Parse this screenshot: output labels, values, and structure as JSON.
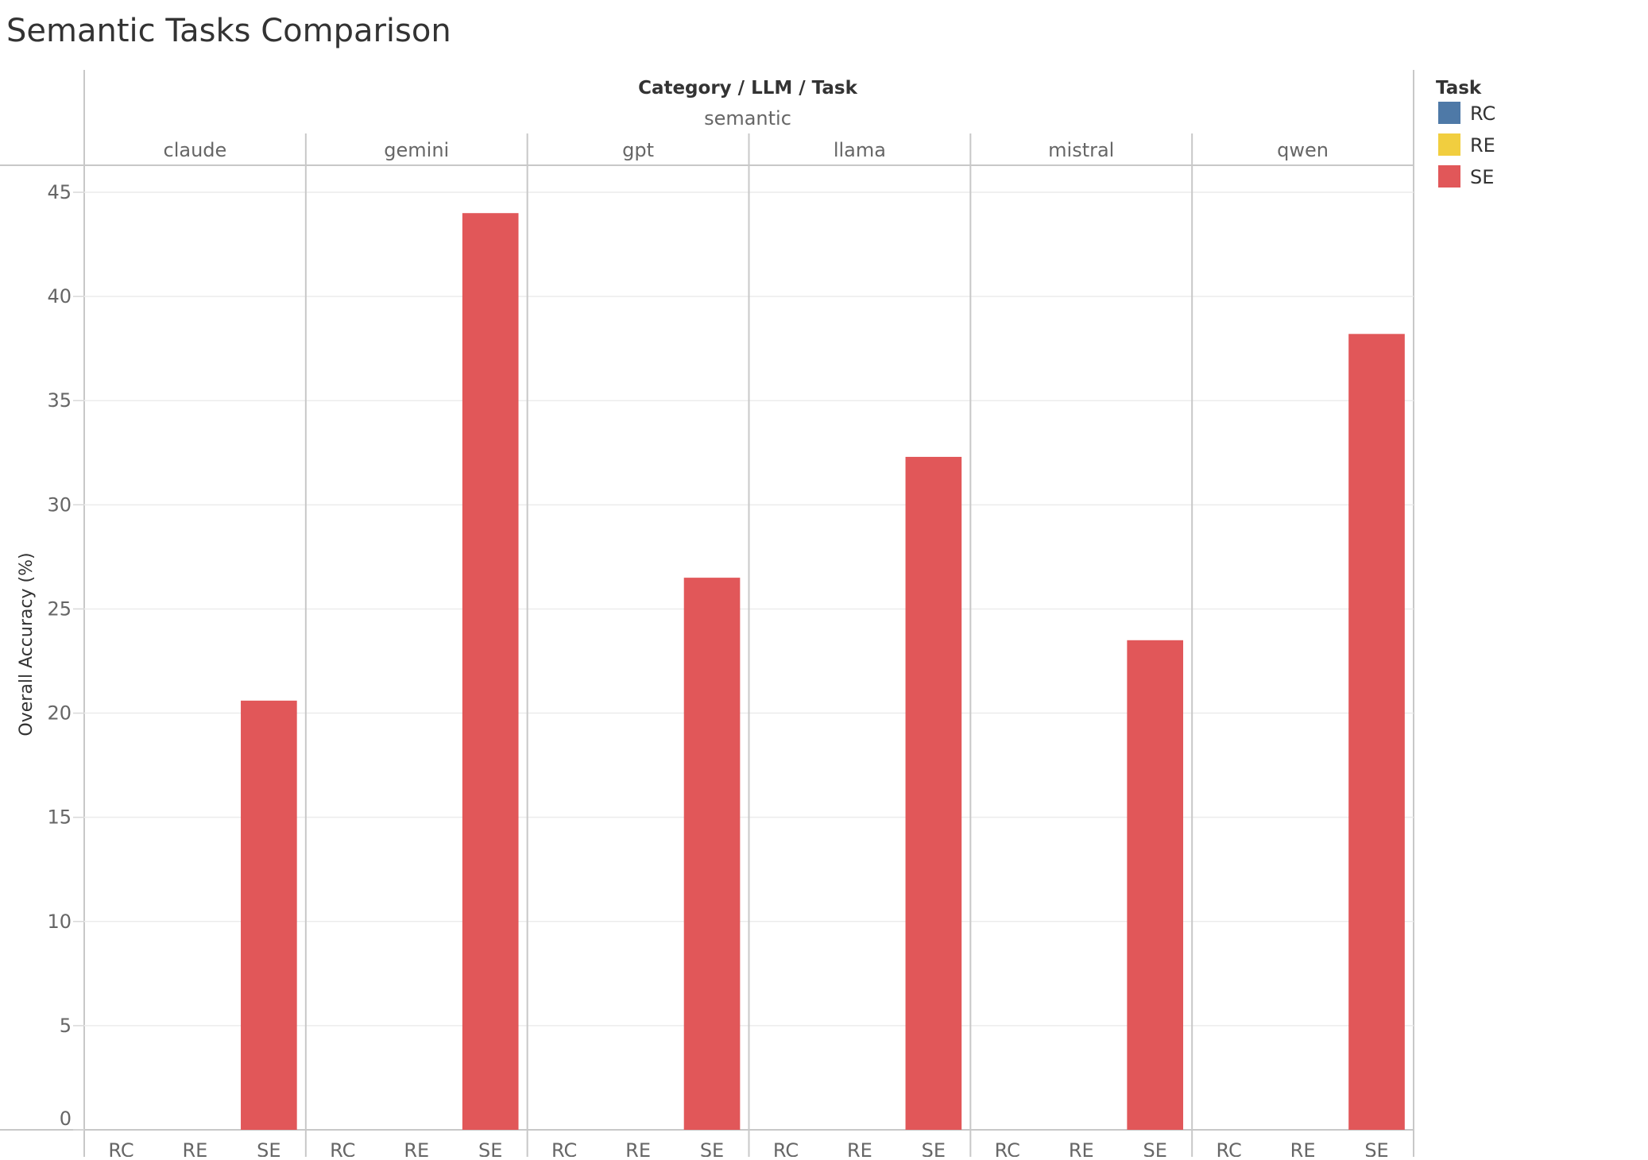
{
  "chart_data": {
    "type": "bar",
    "title": "Semantic Tasks Comparison",
    "header_title": "Category / LLM / Task",
    "category": "semantic",
    "ylabel": "Overall Accuracy (%)",
    "ylim": [
      0,
      46
    ],
    "yticks": [
      0,
      5,
      10,
      15,
      20,
      25,
      30,
      35,
      40,
      45
    ],
    "grid": true,
    "legend_title": "Task",
    "legend_position": "top-right",
    "tasks": [
      "RC",
      "RE",
      "SE"
    ],
    "colors": {
      "RC": "#4e79a7",
      "RE": "#f1ce3f",
      "SE": "#e15759"
    },
    "groups": [
      {
        "llm": "claude",
        "values": {
          "RC": 0,
          "RE": 0,
          "SE": 20.6
        }
      },
      {
        "llm": "gemini",
        "values": {
          "RC": 0,
          "RE": 0,
          "SE": 44.0
        }
      },
      {
        "llm": "gpt",
        "values": {
          "RC": 0,
          "RE": 0,
          "SE": 26.5
        }
      },
      {
        "llm": "llama",
        "values": {
          "RC": 0,
          "RE": 0,
          "SE": 32.3
        }
      },
      {
        "llm": "mistral",
        "values": {
          "RC": 0,
          "RE": 0,
          "SE": 23.5
        }
      },
      {
        "llm": "qwen",
        "values": {
          "RC": 0,
          "RE": 0,
          "SE": 38.2
        }
      }
    ]
  }
}
